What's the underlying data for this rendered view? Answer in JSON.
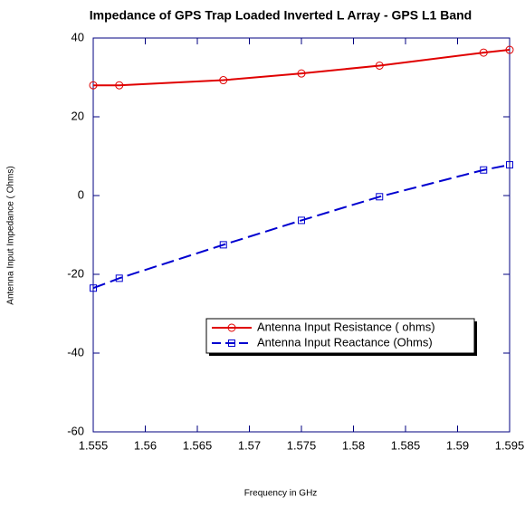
{
  "chart_data": {
    "type": "line",
    "title": "Impedance of  GPS Trap Loaded Inverted L Array - GPS  L1 Band",
    "xlabel": "Frequency in GHz",
    "ylabel": "Antenna Input Impedance ( Ohms)",
    "x": [
      1.555,
      1.5575,
      1.5675,
      1.575,
      1.5825,
      1.5925,
      1.595
    ],
    "series": [
      {
        "name": "Antenna Input Resistance ( ohms)",
        "color": "#e00000",
        "dash": "solid",
        "marker": "circle",
        "values": [
          28,
          28,
          29.3,
          31,
          33,
          36.3,
          37
        ]
      },
      {
        "name": "Antenna Input Reactance (Ohms)",
        "color": "#0000d0",
        "dash": "dashed",
        "marker": "square",
        "values": [
          -23.5,
          -21,
          -12.5,
          -6.3,
          -0.3,
          6.5,
          7.8
        ]
      }
    ],
    "xlim": [
      1.555,
      1.595
    ],
    "xticks": [
      1.555,
      1.56,
      1.565,
      1.57,
      1.575,
      1.58,
      1.585,
      1.59,
      1.595
    ],
    "ylim": [
      -60,
      40
    ],
    "yticks": [
      -60,
      -40,
      -20,
      0,
      20,
      40
    ],
    "grid": false
  }
}
